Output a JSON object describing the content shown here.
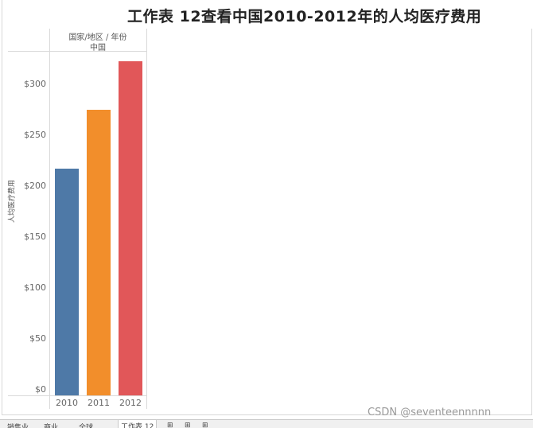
{
  "header": {
    "title": "工作表 12查看中国2010-2012年的人均医疗费用",
    "col_header_line1": "国家/地区 / 年份",
    "col_header_line2": "中国"
  },
  "chart_data": {
    "type": "bar",
    "categories": [
      "2010",
      "2011",
      "2012"
    ],
    "values": [
      217,
      275,
      323
    ],
    "ylabel": "人均医疗费用",
    "xlabel": "",
    "yticks": [
      "$0",
      "$50",
      "$100",
      "$150",
      "$200",
      "$250",
      "$300"
    ],
    "ytick_values": [
      0,
      50,
      100,
      150,
      200,
      250,
      300
    ],
    "ylim": [
      0,
      330
    ],
    "colors": [
      "#4e79a7",
      "#f28e2b",
      "#e15759"
    ],
    "grid": false
  },
  "tabs": [
    "…销售业",
    "…商业",
    "…全球…",
    "工作表 12",
    "",
    "",
    ""
  ],
  "watermark": "CSDN @seventeennnnn"
}
